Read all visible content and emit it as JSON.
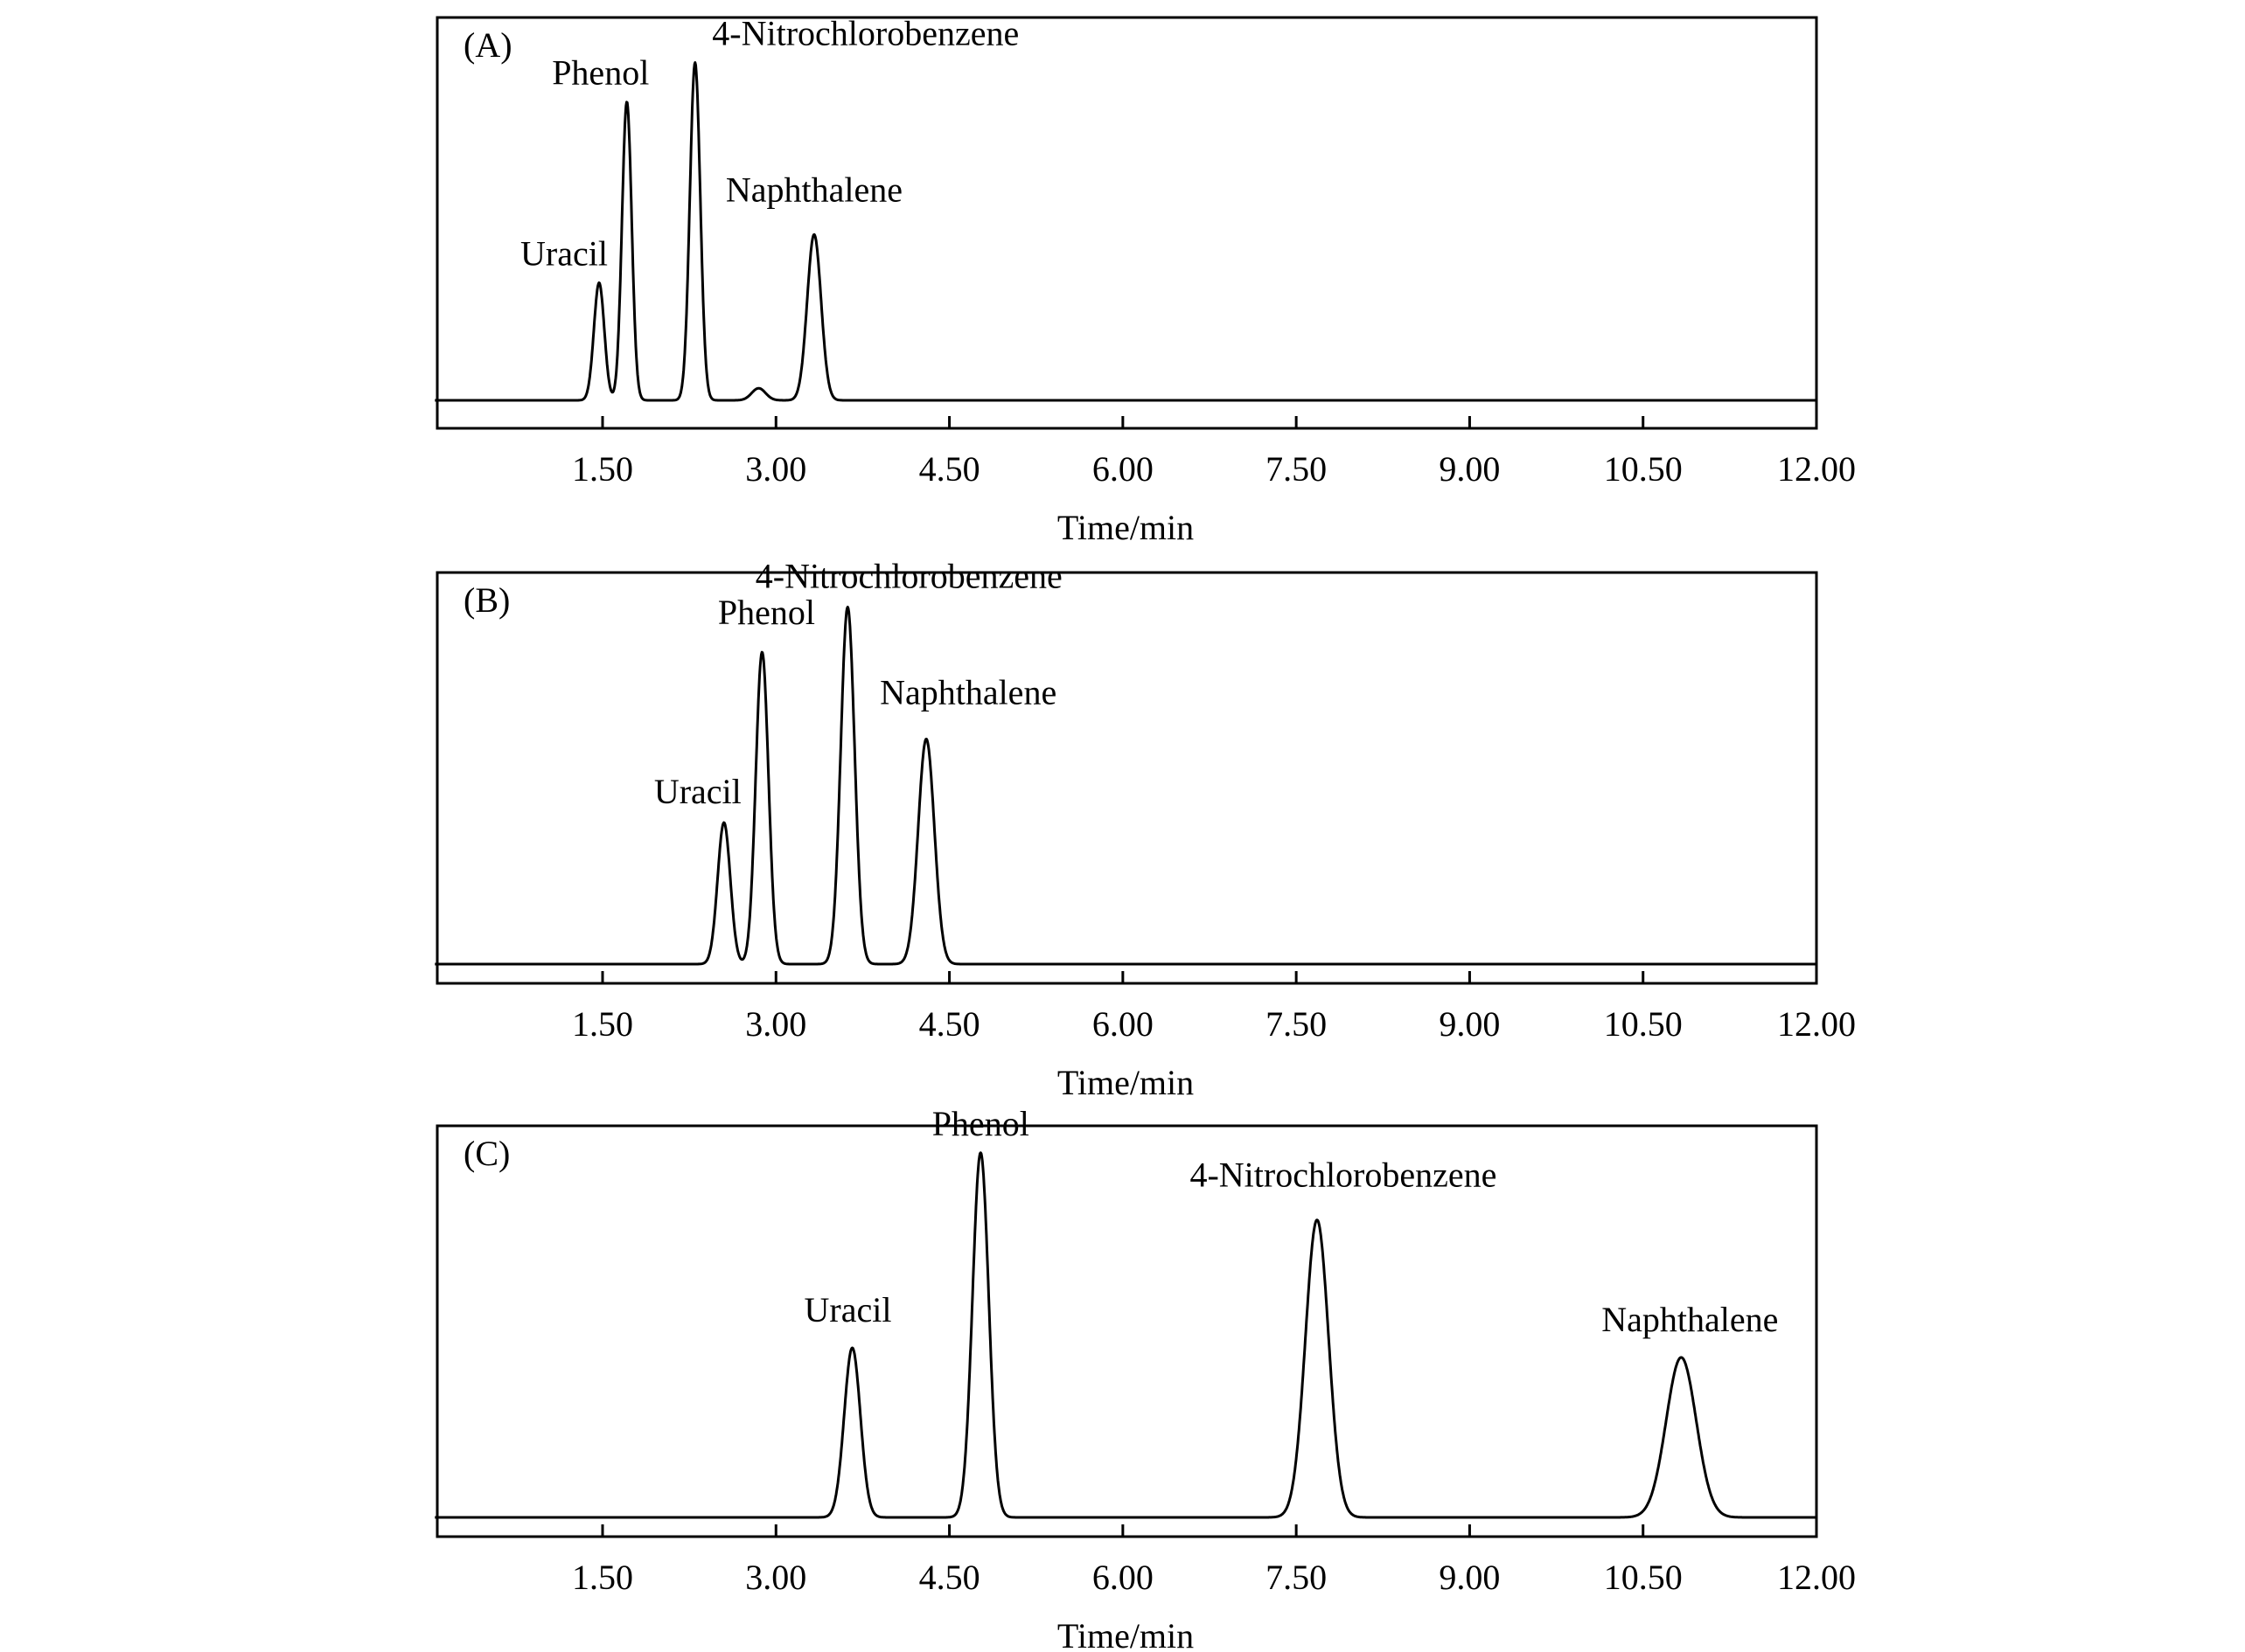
{
  "chart_data": [
    {
      "type": "line",
      "panel_label": "(A)",
      "xlabel": "Time/min",
      "xlim": [
        0.05,
        12.0
      ],
      "xticks": [
        "1.50",
        "3.00",
        "4.50",
        "6.00",
        "7.50",
        "9.00",
        "10.50",
        "12.00"
      ],
      "peaks": [
        {
          "name": "Uracil",
          "time": 1.47,
          "height": 0.39,
          "width": 0.045
        },
        {
          "name": "Phenol",
          "time": 1.71,
          "height": 0.99,
          "width": 0.042
        },
        {
          "name": "4-Nitrochlorobenzene",
          "time": 2.3,
          "height": 1.12,
          "width": 0.045
        },
        {
          "name": "",
          "time": 2.85,
          "height": 0.04,
          "width": 0.06
        },
        {
          "name": "Naphthalene",
          "time": 3.33,
          "height": 0.55,
          "width": 0.06
        }
      ]
    },
    {
      "type": "line",
      "panel_label": "(B)",
      "xlabel": "Time/min",
      "xlim": [
        0.05,
        12.0
      ],
      "xticks": [
        "1.50",
        "3.00",
        "4.50",
        "6.00",
        "7.50",
        "9.00",
        "10.50",
        "12.00"
      ],
      "peaks": [
        {
          "name": "Uracil",
          "time": 2.55,
          "height": 0.44,
          "width": 0.055
        },
        {
          "name": "Phenol",
          "time": 2.88,
          "height": 0.97,
          "width": 0.055
        },
        {
          "name": "4-Nitrochlorobenzene",
          "time": 3.62,
          "height": 1.11,
          "width": 0.06
        },
        {
          "name": "Naphthalene",
          "time": 4.3,
          "height": 0.7,
          "width": 0.07
        }
      ]
    },
    {
      "type": "line",
      "panel_label": "(C)",
      "xlabel": "Time/min",
      "xlim": [
        0.05,
        12.0
      ],
      "xticks": [
        "1.50",
        "3.00",
        "4.50",
        "6.00",
        "7.50",
        "9.00",
        "10.50",
        "12.00"
      ],
      "peaks": [
        {
          "name": "Uracil",
          "time": 3.66,
          "height": 0.53,
          "width": 0.07
        },
        {
          "name": "Phenol",
          "time": 4.77,
          "height": 1.14,
          "width": 0.07
        },
        {
          "name": "4-Nitrochlorobenzene",
          "time": 7.68,
          "height": 0.93,
          "width": 0.1
        },
        {
          "name": "Naphthalene",
          "time": 10.83,
          "height": 0.5,
          "width": 0.13
        }
      ]
    }
  ]
}
